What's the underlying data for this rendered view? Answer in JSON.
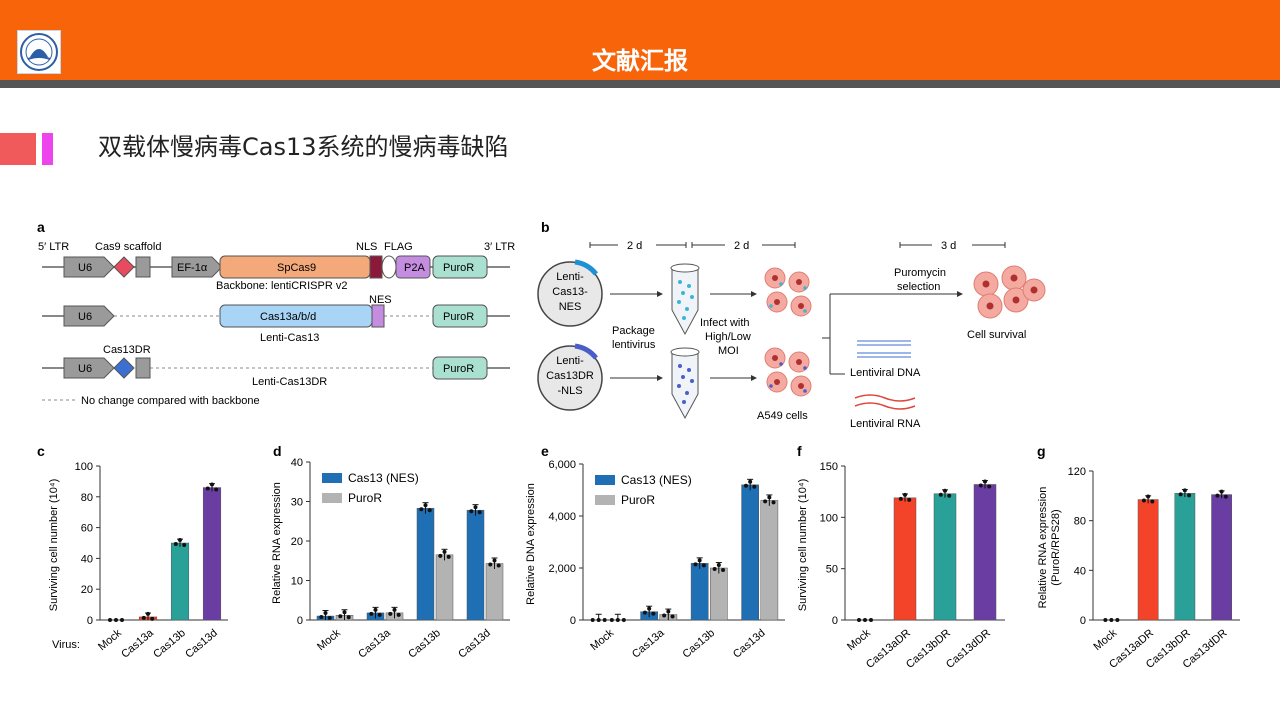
{
  "header": {
    "title": "文献汇报"
  },
  "slide": {
    "title": "双载体慢病毒Cas13系统的慢病毒缺陷"
  },
  "colors": {
    "header": "#f8640a",
    "cas13a": "#f3442a",
    "cas13b": "#2aa198",
    "cas13d": "#6a3da3",
    "nes": "#1f6fb5",
    "puror": "#b3b3b3"
  },
  "panel_a": {
    "letter": "a",
    "ltr5": "5′ LTR",
    "ltr3": "3′ LTR",
    "cas9_scaffold": "Cas9 scaffold",
    "u6": "U6",
    "ef1a": "EF-1α",
    "spcas9": "SpCas9",
    "nls": "NLS",
    "flag": "FLAG",
    "p2a": "P2A",
    "puror": "PuroR",
    "backbone": "Backbone: lentiCRISPR v2",
    "nes": "NES",
    "cas13abd": "Cas13a/b/d",
    "lenti_cas13": "Lenti-Cas13",
    "cas13dr": "Cas13DR",
    "lenti_cas13dr": "Lenti-Cas13DR",
    "legend": "No change compared with backbone"
  },
  "panel_b": {
    "letter": "b",
    "d1": "2 d",
    "d2": "2 d",
    "d3": "3 d",
    "lenti_nes": [
      "Lenti-",
      "Cas13-",
      "NES"
    ],
    "lenti_nls": [
      "Lenti-",
      "Cas13DR",
      "-NLS"
    ],
    "package": [
      "Package",
      "lentivirus"
    ],
    "infect": [
      "Infect with",
      "High/Low",
      "MOI"
    ],
    "puro": [
      "Puromycin",
      "selection"
    ],
    "a549": "A549 cells",
    "survival": "Cell survival",
    "dna": "Lentiviral DNA",
    "rna": "Lentiviral RNA"
  },
  "chart_data": [
    {
      "id": "c",
      "type": "bar",
      "categories": [
        "Mock",
        "Cas13a",
        "Cas13b",
        "Cas13d"
      ],
      "values": [
        0,
        2,
        50,
        86
      ],
      "ylabel": "Surviving cell number (10⁴)",
      "ylim": [
        0,
        100
      ],
      "yticks": [
        "0",
        "20",
        "40",
        "60",
        "80",
        "100"
      ],
      "row_label": "Virus:"
    },
    {
      "id": "d",
      "type": "bar",
      "categories": [
        "Mock",
        "Cas13a",
        "Cas13b",
        "Cas13d"
      ],
      "series": [
        {
          "name": "Cas13 (NES)",
          "values": [
            1,
            1.8,
            28.3,
            27.8
          ]
        },
        {
          "name": "PuroR",
          "values": [
            1.2,
            1.8,
            16.5,
            14.3
          ]
        }
      ],
      "ylabel": "Relative RNA expression",
      "ylim": [
        0,
        40
      ],
      "yticks": [
        "0",
        "10",
        "20",
        "30",
        "40"
      ]
    },
    {
      "id": "e",
      "type": "bar",
      "categories": [
        "Mock",
        "Cas13a",
        "Cas13b",
        "Cas13d"
      ],
      "series": [
        {
          "name": "Cas13 (NES)",
          "values": [
            10,
            320,
            2180,
            5200
          ]
        },
        {
          "name": "PuroR",
          "values": [
            10,
            210,
            2000,
            4600
          ]
        }
      ],
      "ylabel": "Relative DNA expression",
      "ylim": [
        0,
        6000
      ],
      "yticks": [
        "0",
        "2,000",
        "4,000",
        "6,000"
      ]
    },
    {
      "id": "f",
      "type": "bar",
      "categories": [
        "Mock",
        "Cas13aDR",
        "Cas13bDR",
        "Cas13dDR"
      ],
      "values": [
        0,
        119,
        123,
        132
      ],
      "ylabel": "Surviving cell number (10⁴)",
      "ylim": [
        0,
        150
      ],
      "yticks": [
        "0",
        "50",
        "100",
        "150"
      ]
    },
    {
      "id": "g",
      "type": "bar",
      "categories": [
        "Mock",
        "Cas13aDR",
        "Cas13bDR",
        "Cas13dDR"
      ],
      "values": [
        0,
        97,
        102,
        101
      ],
      "ylabel": "Relative RNA expression",
      "ylabel2": "(PuroR/RPS28)",
      "ylim": [
        0,
        120
      ],
      "yticks": [
        "0",
        "40",
        "80",
        "120"
      ]
    }
  ]
}
